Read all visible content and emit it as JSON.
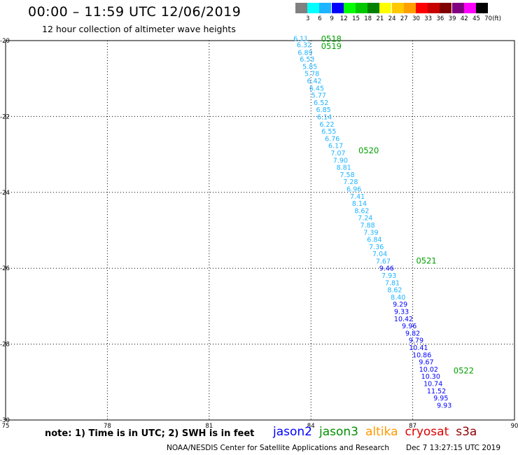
{
  "header": {
    "title": "00:00 – 11:59 UTC 12/06/2019",
    "subtitle": "12 hour collection of altimeter wave heights"
  },
  "color_scale": {
    "labels": [
      "3",
      "6",
      "9",
      "12",
      "15",
      "18",
      "21",
      "24",
      "27",
      "30",
      "33",
      "36",
      "39",
      "42",
      "45",
      "70"
    ],
    "colors": [
      "#808080",
      "#00ffff",
      "#1eb4ff",
      "#0000ff",
      "#00ff00",
      "#00c800",
      "#008000",
      "#ffff00",
      "#ffc800",
      "#ffa000",
      "#ff0000",
      "#c80000",
      "#800000",
      "#800080",
      "#ff00ff",
      "#000000"
    ],
    "unit": "(ft)"
  },
  "map": {
    "lon_ticks": [
      "75",
      "78",
      "81",
      "84",
      "87",
      "90"
    ],
    "lat_ticks": [
      "-20",
      "-22",
      "-24",
      "-26",
      "-28",
      "-30"
    ],
    "lon_range": [
      75,
      90
    ],
    "lat_range": [
      -20,
      -30
    ],
    "grid": true
  },
  "tracks": [
    {
      "satellite": "jason3",
      "color": "#00a000",
      "time_labels": [
        {
          "text": "0518",
          "lon": 84.3,
          "lat": -19.95
        },
        {
          "text": "0519",
          "lon": 84.3,
          "lat": -20.15
        },
        {
          "text": "0520",
          "lon": 85.4,
          "lat": -22.9
        },
        {
          "text": "0521",
          "lon": 87.1,
          "lat": -25.8
        },
        {
          "text": "0522",
          "lon": 88.2,
          "lat": -28.7
        }
      ]
    }
  ],
  "observations": [
    {
      "v": "6.11",
      "lon": 83.7,
      "lat": -19.95,
      "c": "#1eb4ff"
    },
    {
      "v": "6.32",
      "lon": 83.8,
      "lat": -20.12,
      "c": "#1eb4ff"
    },
    {
      "v": "6.89",
      "lon": 83.83,
      "lat": -20.32,
      "c": "#1eb4ff"
    },
    {
      "v": "6.53",
      "lon": 83.89,
      "lat": -20.5,
      "c": "#1eb4ff"
    },
    {
      "v": "5.85",
      "lon": 83.97,
      "lat": -20.69,
      "c": "#1eb4ff"
    },
    {
      "v": "5.78",
      "lon": 84.03,
      "lat": -20.88,
      "c": "#1eb4ff"
    },
    {
      "v": "6.42",
      "lon": 84.1,
      "lat": -21.07,
      "c": "#1eb4ff"
    },
    {
      "v": "6.45",
      "lon": 84.17,
      "lat": -21.26,
      "c": "#1eb4ff"
    },
    {
      "v": "5.77",
      "lon": 84.23,
      "lat": -21.45,
      "c": "#1eb4ff"
    },
    {
      "v": "6.52",
      "lon": 84.3,
      "lat": -21.64,
      "c": "#1eb4ff"
    },
    {
      "v": "6.85",
      "lon": 84.37,
      "lat": -21.83,
      "c": "#1eb4ff"
    },
    {
      "v": "6.14",
      "lon": 84.4,
      "lat": -22.02,
      "c": "#1eb4ff"
    },
    {
      "v": "6.22",
      "lon": 84.47,
      "lat": -22.21,
      "c": "#1eb4ff"
    },
    {
      "v": "6.55",
      "lon": 84.53,
      "lat": -22.4,
      "c": "#1eb4ff"
    },
    {
      "v": "6.76",
      "lon": 84.63,
      "lat": -22.59,
      "c": "#1eb4ff"
    },
    {
      "v": "6.17",
      "lon": 84.73,
      "lat": -22.78,
      "c": "#1eb4ff"
    },
    {
      "v": "7.07",
      "lon": 84.8,
      "lat": -22.97,
      "c": "#1eb4ff"
    },
    {
      "v": "7.90",
      "lon": 84.87,
      "lat": -23.16,
      "c": "#1eb4ff"
    },
    {
      "v": "8.81",
      "lon": 84.97,
      "lat": -23.35,
      "c": "#1eb4ff"
    },
    {
      "v": "7.58",
      "lon": 85.07,
      "lat": -23.54,
      "c": "#1eb4ff"
    },
    {
      "v": "7.28",
      "lon": 85.17,
      "lat": -23.73,
      "c": "#1eb4ff"
    },
    {
      "v": "6.96",
      "lon": 85.27,
      "lat": -23.92,
      "c": "#1eb4ff"
    },
    {
      "v": "7.41",
      "lon": 85.37,
      "lat": -24.11,
      "c": "#1eb4ff"
    },
    {
      "v": "8.14",
      "lon": 85.43,
      "lat": -24.3,
      "c": "#1eb4ff"
    },
    {
      "v": "8.62",
      "lon": 85.5,
      "lat": -24.49,
      "c": "#1eb4ff"
    },
    {
      "v": "7.24",
      "lon": 85.6,
      "lat": -24.68,
      "c": "#1eb4ff"
    },
    {
      "v": "7.88",
      "lon": 85.67,
      "lat": -24.87,
      "c": "#1eb4ff"
    },
    {
      "v": "7.39",
      "lon": 85.77,
      "lat": -25.06,
      "c": "#1eb4ff"
    },
    {
      "v": "6.84",
      "lon": 85.87,
      "lat": -25.25,
      "c": "#1eb4ff"
    },
    {
      "v": "7.36",
      "lon": 85.93,
      "lat": -25.44,
      "c": "#1eb4ff"
    },
    {
      "v": "7.04",
      "lon": 86.03,
      "lat": -25.63,
      "c": "#1eb4ff"
    },
    {
      "v": "7.67",
      "lon": 86.13,
      "lat": -25.82,
      "c": "#1eb4ff"
    },
    {
      "v": "9.46",
      "lon": 86.23,
      "lat": -26.01,
      "c": "#0000ff"
    },
    {
      "v": "7.93",
      "lon": 86.3,
      "lat": -26.2,
      "c": "#1eb4ff"
    },
    {
      "v": "7.81",
      "lon": 86.4,
      "lat": -26.39,
      "c": "#1eb4ff"
    },
    {
      "v": "8.62",
      "lon": 86.47,
      "lat": -26.58,
      "c": "#1eb4ff"
    },
    {
      "v": "8.40",
      "lon": 86.57,
      "lat": -26.77,
      "c": "#1eb4ff"
    },
    {
      "v": "9.29",
      "lon": 86.63,
      "lat": -26.96,
      "c": "#0000ff"
    },
    {
      "v": "9.33",
      "lon": 86.67,
      "lat": -27.15,
      "c": "#0000ff"
    },
    {
      "v": "10.42",
      "lon": 86.73,
      "lat": -27.34,
      "c": "#0000ff"
    },
    {
      "v": "9.96",
      "lon": 86.9,
      "lat": -27.53,
      "c": "#0000ff"
    },
    {
      "v": "9.82",
      "lon": 87.0,
      "lat": -27.72,
      "c": "#0000ff"
    },
    {
      "v": "9.79",
      "lon": 87.1,
      "lat": -27.91,
      "c": "#0000ff"
    },
    {
      "v": "10.41",
      "lon": 87.17,
      "lat": -28.1,
      "c": "#0000ff"
    },
    {
      "v": "10.86",
      "lon": 87.27,
      "lat": -28.29,
      "c": "#0000ff"
    },
    {
      "v": "9.67",
      "lon": 87.4,
      "lat": -28.48,
      "c": "#0000ff"
    },
    {
      "v": "10.02",
      "lon": 87.47,
      "lat": -28.67,
      "c": "#0000ff"
    },
    {
      "v": "10.30",
      "lon": 87.53,
      "lat": -28.86,
      "c": "#0000ff"
    },
    {
      "v": "10.74",
      "lon": 87.6,
      "lat": -29.05,
      "c": "#0000ff"
    },
    {
      "v": "11.52",
      "lon": 87.7,
      "lat": -29.24,
      "c": "#0000ff"
    },
    {
      "v": "9.95",
      "lon": 87.83,
      "lat": -29.43,
      "c": "#0000ff"
    },
    {
      "v": "9.93",
      "lon": 87.93,
      "lat": -29.62,
      "c": "#0000ff"
    }
  ],
  "footer": {
    "note": "note: 1) Time is in UTC; 2) SWH is in feet",
    "legend": [
      {
        "label": "jason2",
        "color": "#0000ff"
      },
      {
        "label": "jason3",
        "color": "#009000"
      },
      {
        "label": "altika",
        "color": "#ff9900"
      },
      {
        "label": "cryosat",
        "color": "#e00000"
      },
      {
        "label": "s3a",
        "color": "#900000"
      }
    ],
    "credit": "NOAA/NESDIS Center for Satellite Applications and Research",
    "timestamp": "Dec  7 13:27:15 UTC 2019"
  }
}
